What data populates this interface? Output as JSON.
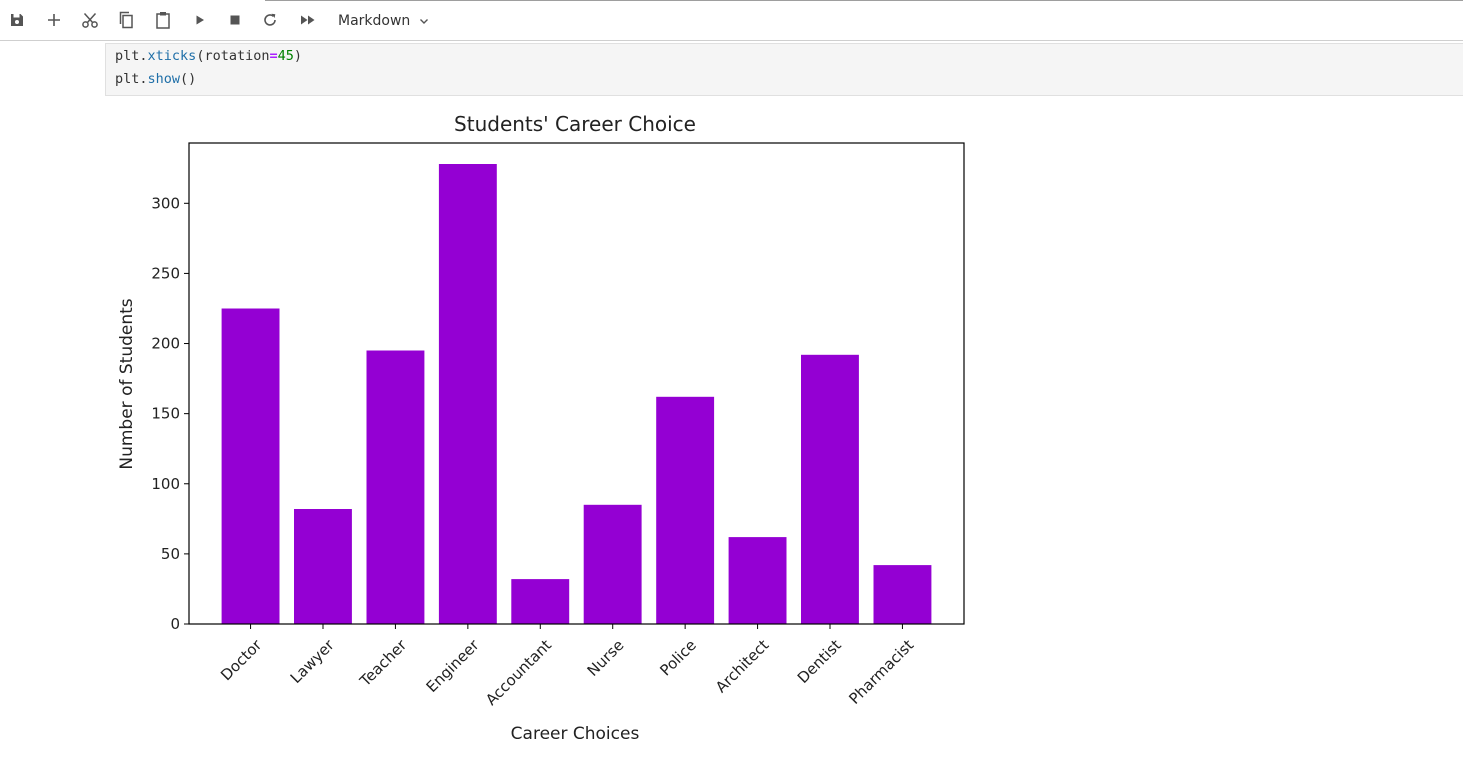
{
  "toolbar": {
    "buttons": [
      {
        "name": "save-button",
        "icon": "save-icon"
      },
      {
        "name": "add-cell-button",
        "icon": "plus-icon"
      },
      {
        "name": "cut-button",
        "icon": "scissors-icon"
      },
      {
        "name": "copy-button",
        "icon": "copy-icon"
      },
      {
        "name": "paste-button",
        "icon": "clipboard-icon"
      },
      {
        "name": "run-button",
        "icon": "play-icon"
      },
      {
        "name": "stop-button",
        "icon": "stop-icon"
      },
      {
        "name": "restart-button",
        "icon": "restart-icon"
      },
      {
        "name": "run-all-button",
        "icon": "fast-forward-icon"
      }
    ],
    "cell_type": "Markdown"
  },
  "code_cell": {
    "line1": {
      "obj": "plt",
      "dot": ".",
      "method": "xticks",
      "open": "(",
      "arg": "rotation",
      "eq": "=",
      "num": "45",
      "close": ")"
    },
    "line2": {
      "obj": "plt",
      "dot": ".",
      "method": "show",
      "parens": "()"
    }
  },
  "chart_data": {
    "type": "bar",
    "title": "Students' Career Choice",
    "xlabel": "Career Choices",
    "ylabel": "Number of Students",
    "categories": [
      "Doctor",
      "Lawyer",
      "Teacher",
      "Engineer",
      "Accountant",
      "Nurse",
      "Police",
      "Architect",
      "Dentist",
      "Pharmacist"
    ],
    "values": [
      225,
      82,
      195,
      328,
      32,
      85,
      162,
      62,
      192,
      42
    ],
    "ylim": [
      0,
      343
    ],
    "yticks": [
      0,
      50,
      100,
      150,
      200,
      250,
      300
    ],
    "xtick_rotation": 45,
    "bar_color": "#9400d3",
    "grid": false,
    "legend": false
  }
}
